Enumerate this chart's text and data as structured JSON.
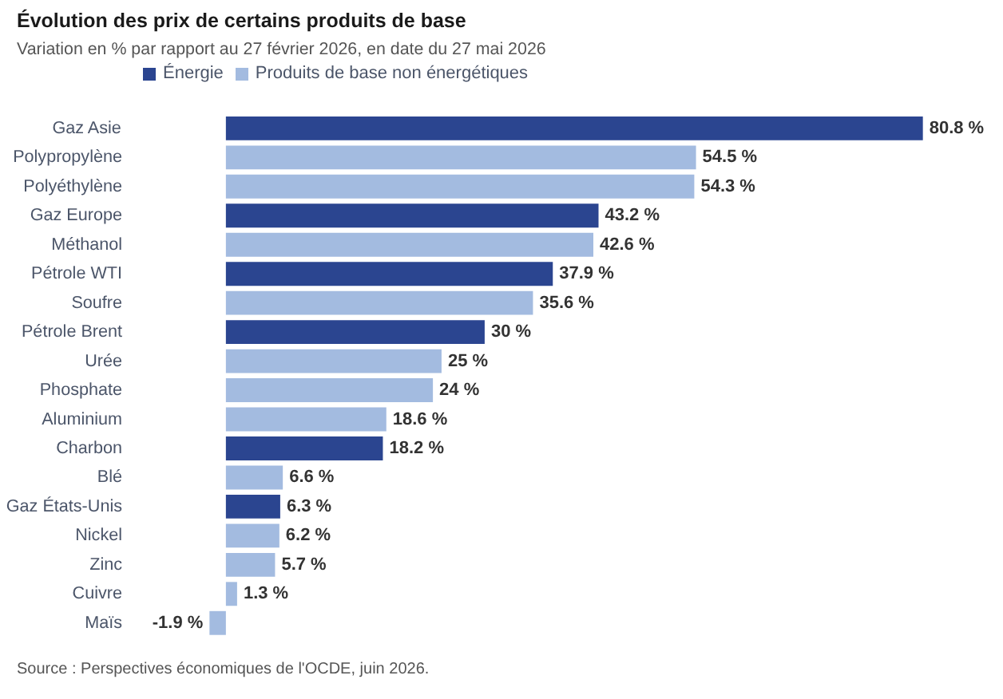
{
  "chart_data": {
    "type": "bar",
    "orientation": "horizontal",
    "stacked": true,
    "title": "Évolution des prix de certains produits de base",
    "subtitle": "Variation en % par rapport au 27 février 2026, en date du 27 mai 2026",
    "categories": [
      "Gaz Asie",
      "Polypropylène",
      "Polyéthylène",
      "Gaz Europe",
      "Méthanol",
      "Pétrole WTI",
      "Soufre",
      "Pétrole Brent",
      "Urée",
      "Phosphate",
      "Aluminium",
      "Charbon",
      "Blé",
      "Gaz États-Unis",
      "Nickel",
      "Zinc",
      "Cuivre",
      "Maïs"
    ],
    "series": [
      {
        "name": "Énergie",
        "color": "#2b4590",
        "values": [
          80.8,
          null,
          null,
          43.2,
          null,
          37.9,
          null,
          30,
          null,
          null,
          null,
          18.2,
          null,
          6.3,
          null,
          null,
          null,
          null
        ],
        "value_labels": [
          "80.8 %",
          null,
          null,
          "43.2 %",
          null,
          "37.9 %",
          null,
          "30 %",
          null,
          null,
          null,
          "18.2 %",
          null,
          "6.3 %",
          null,
          null,
          null,
          null
        ]
      },
      {
        "name": "Produits de base non énergétiques",
        "color": "#a3bbe0",
        "values": [
          null,
          54.5,
          54.3,
          null,
          42.6,
          null,
          35.6,
          null,
          25,
          24,
          18.6,
          null,
          6.6,
          null,
          6.2,
          5.7,
          1.3,
          -1.9
        ],
        "value_labels": [
          null,
          "54.5 %",
          "54.3 %",
          null,
          "42.6 %",
          null,
          "35.6 %",
          null,
          "25 %",
          "24 %",
          "18.6 %",
          null,
          "6.6 %",
          null,
          "6.2 %",
          "5.7 %",
          "1.3 %",
          "-1.9 %"
        ]
      }
    ],
    "tick_labels": "y",
    "legend": "top left",
    "annotations": [
      "Source : Perspectives économiques de l'OCDE, juin 2026."
    ]
  }
}
